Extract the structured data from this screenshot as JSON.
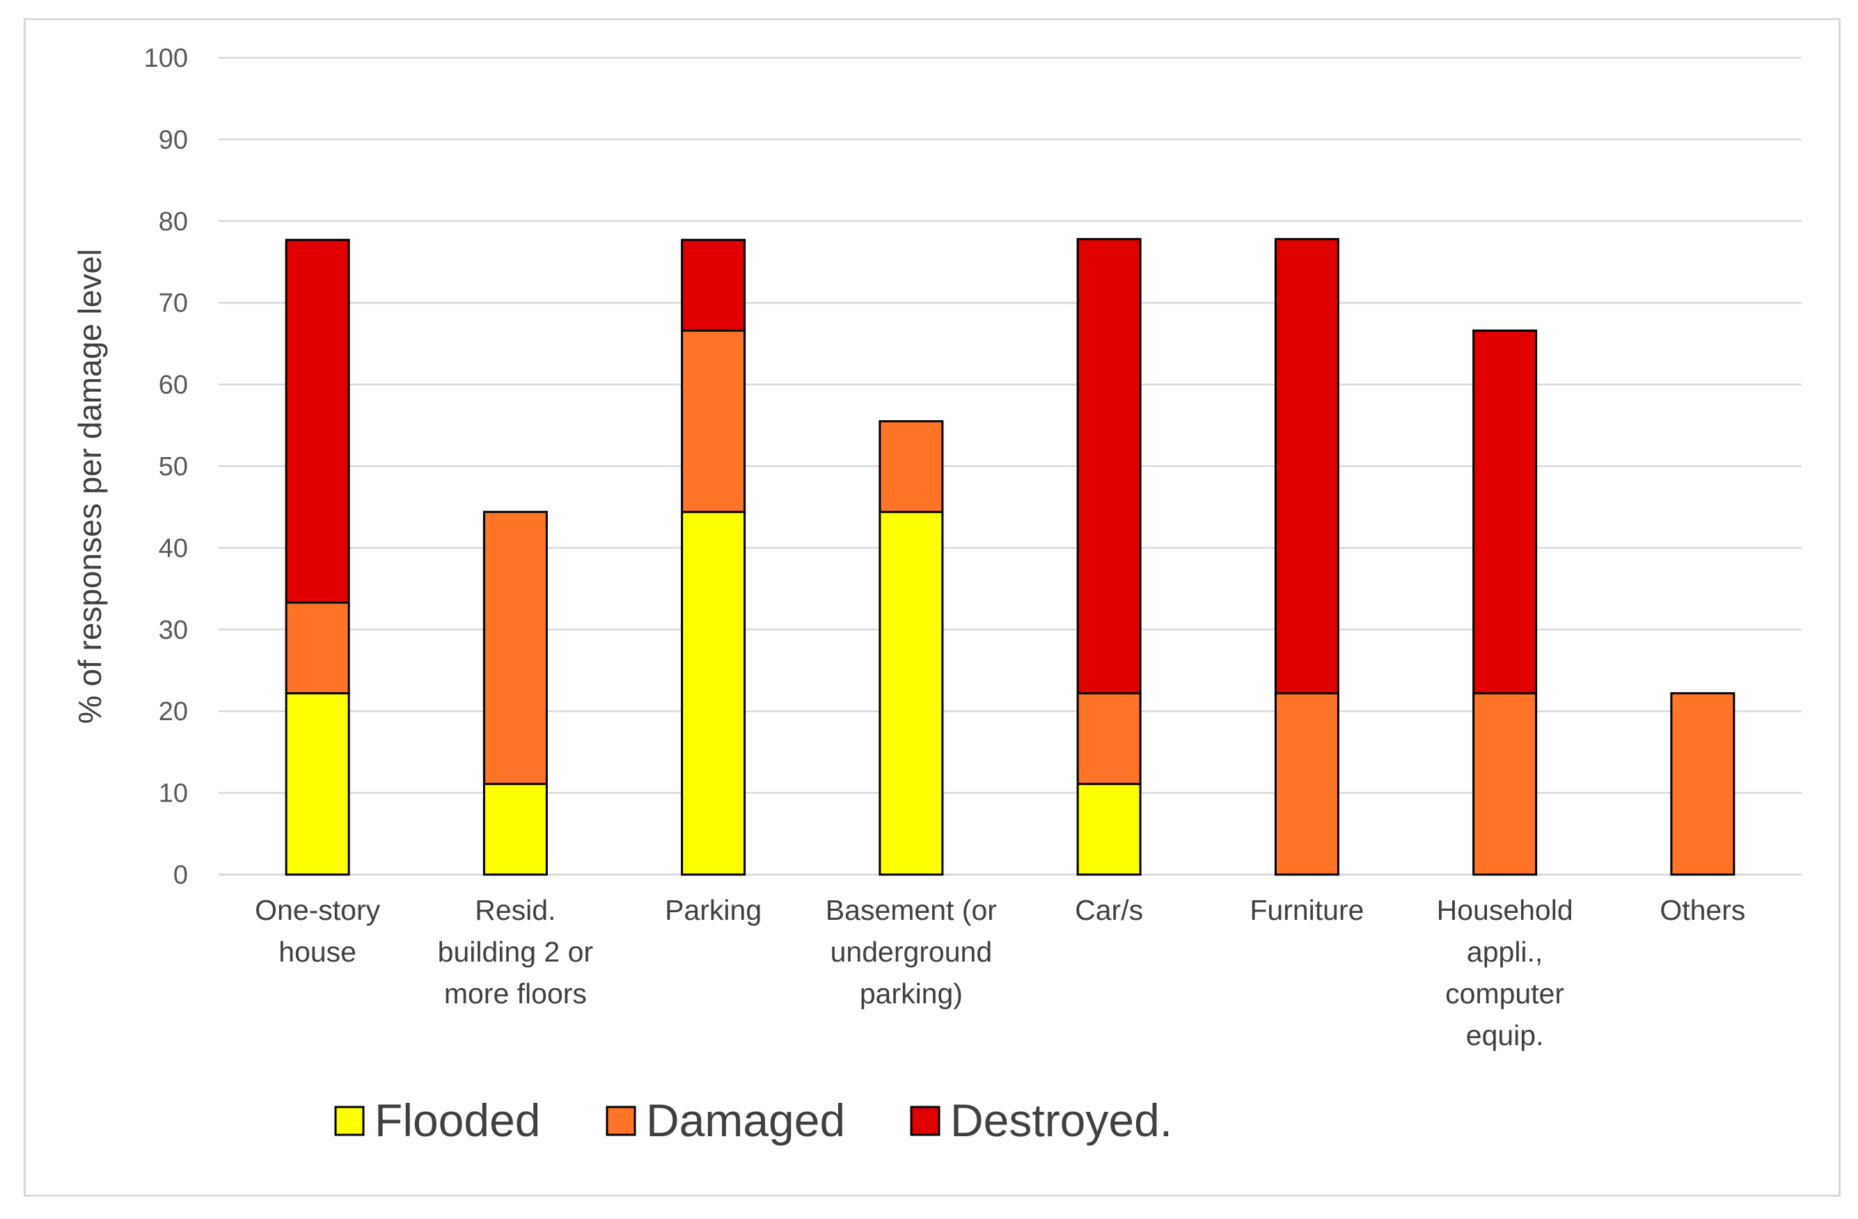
{
  "chart_data": {
    "type": "bar",
    "stacked": true,
    "title": "",
    "xlabel": "",
    "ylabel": "% of responses per damage level",
    "ylim": [
      0,
      100
    ],
    "yticks": [
      0,
      10,
      20,
      30,
      40,
      50,
      60,
      70,
      80,
      90,
      100
    ],
    "grid": true,
    "legend_position": "bottom",
    "categories": [
      [
        "One-story",
        "house"
      ],
      [
        "Resid.",
        "building 2 or",
        "more floors"
      ],
      [
        "Parking"
      ],
      [
        "Basement (or",
        "underground",
        "parking)"
      ],
      [
        "Car/s"
      ],
      [
        "Furniture"
      ],
      [
        "Household",
        "appli.,",
        "computer",
        "equip."
      ],
      [
        "Others"
      ]
    ],
    "series": [
      {
        "name": "Flooded",
        "color": "#ffff00",
        "values": [
          22.2,
          11.1,
          44.4,
          44.4,
          11.1,
          0,
          0,
          0
        ]
      },
      {
        "name": "Damaged",
        "color": "#ff7427",
        "values": [
          11.1,
          33.3,
          22.2,
          11.1,
          11.1,
          22.2,
          22.2,
          22.2
        ]
      },
      {
        "name": "Destroyed.",
        "color": "#e00000",
        "values": [
          44.4,
          0,
          11.1,
          0,
          55.6,
          55.6,
          44.4,
          0
        ]
      }
    ]
  }
}
